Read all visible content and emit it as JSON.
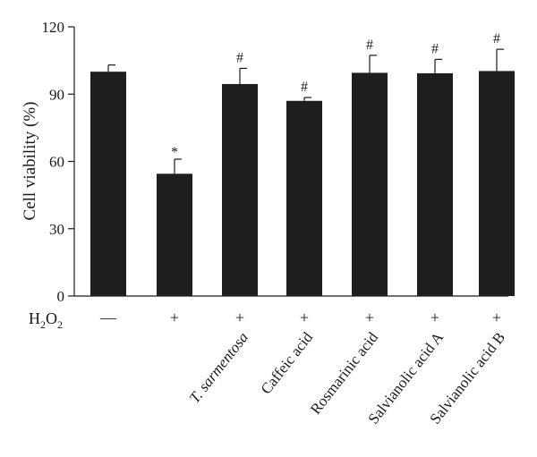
{
  "chart_data": {
    "type": "bar",
    "ylabel": "Cell viability (%)",
    "ylim": [
      0,
      120
    ],
    "yticks": [
      0,
      30,
      60,
      90,
      120
    ],
    "grid": false,
    "categories": [
      "",
      "",
      "T. sarmentosa",
      "Caffeic acid",
      "Rosmarinic acid",
      "Salvianolic acid A",
      "Salvianolic acid B"
    ],
    "category_italic": [
      false,
      false,
      true,
      false,
      false,
      false,
      false
    ],
    "values": [
      100,
      54.5,
      94.5,
      87,
      99.5,
      99.3,
      100.3
    ],
    "errors": [
      3,
      6.5,
      7,
      1.5,
      7.8,
      6.2,
      9.7
    ],
    "annotations": [
      "",
      "*",
      "#",
      "#",
      "#",
      "#",
      "#"
    ],
    "h2o2_row": {
      "label_base": "H",
      "label_sub1": "2",
      "label_mid": "O",
      "label_sub2": "2",
      "signs": [
        "—",
        "+",
        "+",
        "+",
        "+",
        "+",
        "+"
      ]
    },
    "bar_color": "#1e1e1e"
  }
}
